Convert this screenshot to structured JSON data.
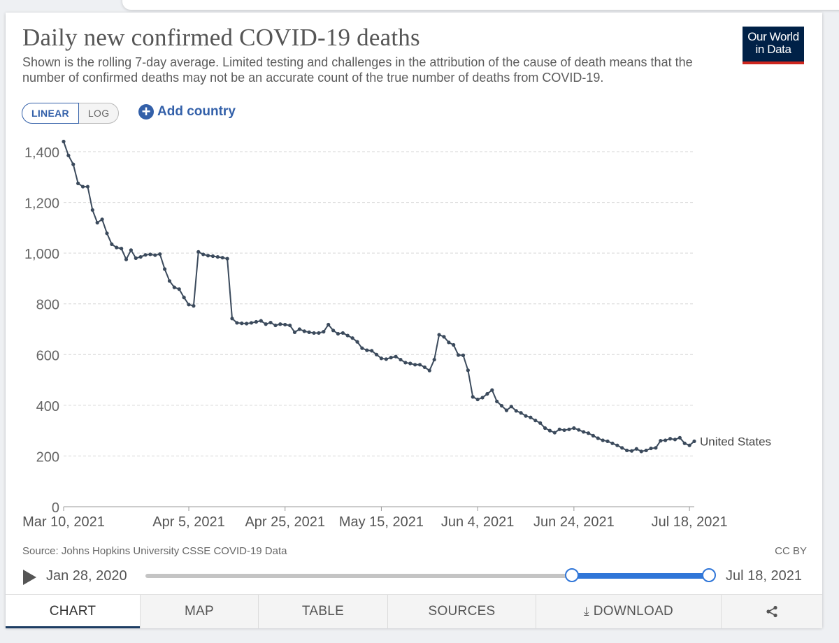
{
  "header": {
    "title": "Daily new confirmed COVID-19 deaths",
    "subtitle": "Shown is the rolling 7-day average. Limited testing and challenges in the attribution of the cause of death means that the number of confirmed deaths may not be an accurate count of the true number of deaths from COVID-19.",
    "logo_line1": "Our World",
    "logo_line2": "in Data"
  },
  "controls": {
    "linear_label": "LINEAR",
    "log_label": "LOG",
    "add_country_label": "Add country",
    "active_scale": "linear"
  },
  "chart_data": {
    "type": "line",
    "title": "Daily new confirmed COVID-19 deaths",
    "xlabel": "",
    "ylabel": "",
    "ylim": [
      0,
      1400
    ],
    "yticks": [
      0,
      200,
      400,
      600,
      800,
      1000,
      1200,
      1400
    ],
    "ytick_labels": [
      "0",
      "200",
      "400",
      "600",
      "800",
      "1,000",
      "1,200",
      "1,400"
    ],
    "xticks": [
      {
        "label": "Mar 10, 2021",
        "day": 0
      },
      {
        "label": "Apr 5, 2021",
        "day": 26
      },
      {
        "label": "Apr 25, 2021",
        "day": 46
      },
      {
        "label": "May 15, 2021",
        "day": 66
      },
      {
        "label": "Jun 4, 2021",
        "day": 86
      },
      {
        "label": "Jun 24, 2021",
        "day": 106
      },
      {
        "label": "Jul 18, 2021",
        "day": 130
      }
    ],
    "x_start": "Mar 10, 2021",
    "x_end": "Jul 18, 2021",
    "grid": true,
    "series": [
      {
        "name": "United States",
        "color": "#3b4a5c",
        "values": [
          1440,
          1385,
          1350,
          1275,
          1262,
          1262,
          1170,
          1120,
          1133,
          1078,
          1035,
          1022,
          1018,
          975,
          1012,
          980,
          985,
          993,
          995,
          992,
          996,
          937,
          890,
          865,
          858,
          825,
          797,
          792,
          1005,
          995,
          990,
          988,
          985,
          982,
          978,
          742,
          725,
          723,
          722,
          725,
          729,
          733,
          720,
          726,
          715,
          720,
          718,
          715,
          688,
          700,
          692,
          688,
          685,
          685,
          690,
          718,
          695,
          682,
          685,
          675,
          665,
          650,
          625,
          617,
          615,
          600,
          585,
          582,
          588,
          592,
          580,
          568,
          565,
          560,
          560,
          550,
          537,
          580,
          678,
          670,
          648,
          638,
          598,
          597,
          538,
          433,
          423,
          430,
          445,
          460,
          415,
          398,
          380,
          395,
          378,
          370,
          358,
          352,
          340,
          330,
          310,
          300,
          292,
          305,
          302,
          305,
          310,
          303,
          295,
          290,
          280,
          270,
          262,
          258,
          250,
          242,
          232,
          222,
          220,
          228,
          218,
          222,
          230,
          232,
          260,
          262,
          268,
          265,
          272,
          250,
          242,
          258
        ]
      }
    ],
    "series_label": "United States",
    "line_color": "#3b4a5c",
    "grid_color": "#d6d6d6"
  },
  "footer": {
    "source": "Source: Johns Hopkins University CSSE COVID-19 Data",
    "license": "CC BY"
  },
  "timeline": {
    "start_label": "Jan 28, 2020",
    "end_label": "Jul 18, 2021",
    "selected_start_fraction": 0.757,
    "selected_end_fraction": 1.0,
    "accent_color": "#3076d8"
  },
  "tabs": [
    {
      "label": "CHART",
      "active": true
    },
    {
      "label": "MAP",
      "active": false
    },
    {
      "label": "TABLE",
      "active": false
    },
    {
      "label": "SOURCES",
      "active": false
    },
    {
      "label": "DOWNLOAD",
      "active": false
    },
    {
      "label": "",
      "active": false
    }
  ]
}
